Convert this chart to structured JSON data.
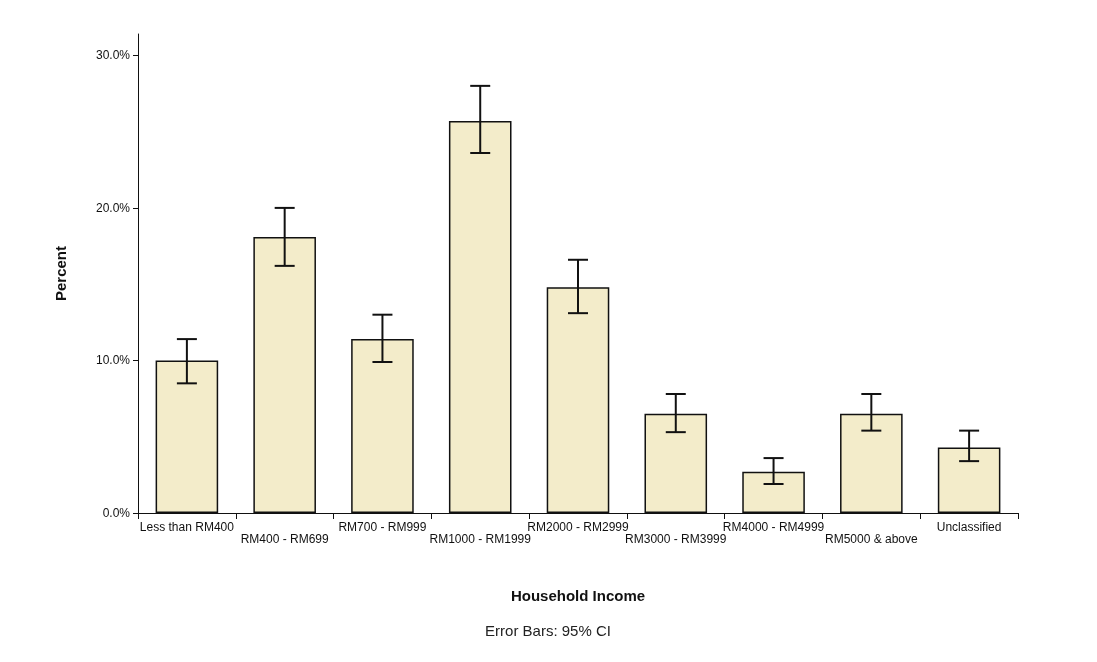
{
  "chart_data": {
    "type": "bar",
    "xlabel": "Household Income",
    "ylabel": "Percent",
    "categories": [
      "Less than RM400",
      "RM400 - RM699",
      "RM700 - RM999",
      "RM1000 - RM1999",
      "RM2000 - RM2999",
      "RM3000 - RM3999",
      "RM4000 - RM4999",
      "RM5000 & above",
      "Unclassified"
    ],
    "values": [
      10.0,
      18.1,
      11.4,
      25.7,
      14.8,
      6.5,
      2.7,
      6.5,
      4.3
    ],
    "errors": [
      [
        8.5,
        11.4
      ],
      [
        16.2,
        20.0
      ],
      [
        9.9,
        13.0
      ],
      [
        23.6,
        28.0
      ],
      [
        13.1,
        16.6
      ],
      [
        5.3,
        7.8
      ],
      [
        1.9,
        3.6
      ],
      [
        5.4,
        7.8
      ],
      [
        3.4,
        5.4
      ]
    ],
    "color": "#f3ecca",
    "ylim": [
      0,
      31.4
    ],
    "yticks": [
      {
        "value": 0,
        "label": "0.0%"
      },
      {
        "value": 10,
        "label": "10.0%"
      },
      {
        "value": 20,
        "label": "20.0%"
      },
      {
        "value": 30,
        "label": "30.0%"
      }
    ],
    "grid": false,
    "annotations": [
      "Error Bars: 95% CI"
    ]
  }
}
